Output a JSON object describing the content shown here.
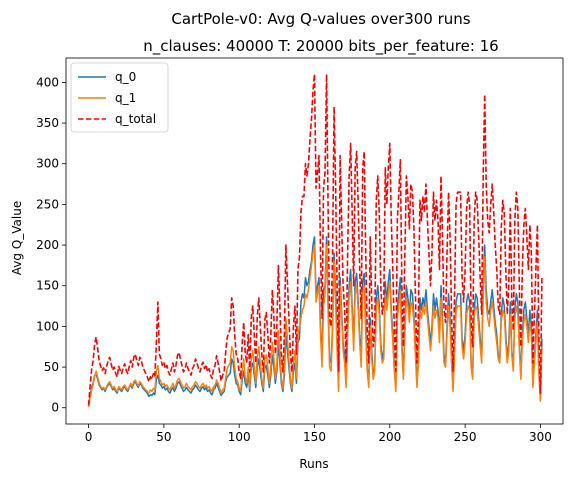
{
  "chart_data": {
    "type": "line",
    "title": "CartPole-v0: Avg Q-values over300 runs",
    "subtitle": "n_clauses: 40000 T: 20000 bits_per_feature: 16",
    "xlabel": "Runs",
    "ylabel": "Avg Q_Value",
    "xlim": [
      -15,
      315
    ],
    "ylim": [
      -20,
      430
    ],
    "xticks": [
      0,
      50,
      100,
      150,
      200,
      250,
      300
    ],
    "yticks": [
      0,
      50,
      100,
      150,
      200,
      250,
      300,
      350,
      400
    ],
    "grid": false,
    "legend_position": "top-left",
    "series": [
      {
        "name": "q_0",
        "color": "#1f77b4",
        "style": "solid",
        "values": [
          2,
          15,
          25,
          30,
          40,
          42,
          35,
          28,
          25,
          22,
          24,
          20,
          25,
          28,
          30,
          26,
          22,
          24,
          20,
          18,
          25,
          22,
          20,
          24,
          26,
          22,
          20,
          25,
          28,
          24,
          30,
          32,
          28,
          25,
          30,
          28,
          24,
          22,
          20,
          18,
          14,
          16,
          15,
          18,
          16,
          35,
          40,
          30,
          28,
          24,
          26,
          22,
          24,
          20,
          18,
          22,
          25,
          20,
          24,
          30,
          32,
          28,
          24,
          20,
          22,
          25,
          22,
          20,
          18,
          22,
          24,
          28,
          25,
          22,
          20,
          24,
          26,
          22,
          25,
          20,
          22,
          18,
          16,
          22,
          24,
          30,
          25,
          20,
          15,
          18,
          20,
          32,
          38,
          40,
          42,
          60,
          55,
          40,
          30,
          28,
          20,
          16,
          35,
          45,
          30,
          25,
          40,
          20,
          50,
          55,
          40,
          25,
          50,
          60,
          45,
          30,
          20,
          48,
          52,
          40,
          25,
          40,
          65,
          50,
          30,
          45,
          80,
          55,
          30,
          20,
          40,
          90,
          70,
          50,
          30,
          20,
          45,
          55,
          30,
          80,
          85,
          130,
          140,
          135,
          160,
          150,
          155,
          170,
          180,
          200,
          210,
          140,
          150,
          160,
          100,
          60,
          145,
          150,
          210,
          130,
          60,
          55,
          100,
          190,
          145,
          80,
          25,
          160,
          120,
          80,
          65,
          30,
          100,
          150,
          170,
          125,
          80,
          155,
          165,
          130,
          90,
          60,
          155,
          165,
          100,
          50,
          30,
          110,
          70,
          40,
          50,
          135,
          150,
          125,
          80,
          60,
          70,
          155,
          130,
          155,
          170,
          120,
          90,
          50,
          25,
          120,
          140,
          160,
          80,
          40,
          100,
          150,
          135,
          115,
          145,
          140,
          115,
          75,
          30,
          60,
          135,
          120,
          135,
          125,
          145,
          120,
          100,
          80,
          100,
          140,
          120,
          135,
          120,
          90,
          150,
          110,
          65,
          55,
          100,
          140,
          110,
          60,
          25,
          75,
          130,
          140,
          140,
          140,
          85,
          70,
          90,
          130,
          140,
          130,
          55,
          40,
          120,
          140,
          135,
          110,
          85,
          60,
          150,
          200,
          145,
          120,
          115,
          130,
          145,
          125,
          105,
          90,
          65,
          60,
          115,
          135,
          125,
          90,
          60,
          80,
          130,
          70,
          50,
          120,
          140,
          130,
          80,
          40,
          90,
          120,
          130,
          110,
          90,
          120,
          100,
          30,
          60,
          90,
          120,
          45,
          10,
          85
        ]
      },
      {
        "name": "q_1",
        "color": "#ff7f0e",
        "style": "solid",
        "values": [
          1,
          12,
          22,
          28,
          38,
          45,
          38,
          30,
          26,
          24,
          25,
          22,
          26,
          30,
          32,
          28,
          24,
          26,
          22,
          20,
          26,
          24,
          22,
          26,
          28,
          24,
          22,
          26,
          30,
          26,
          32,
          34,
          30,
          27,
          32,
          30,
          26,
          24,
          22,
          20,
          18,
          22,
          20,
          24,
          22,
          45,
          52,
          36,
          32,
          28,
          30,
          26,
          28,
          24,
          22,
          26,
          30,
          24,
          28,
          34,
          36,
          32,
          28,
          24,
          26,
          30,
          26,
          24,
          22,
          26,
          28,
          32,
          30,
          26,
          24,
          28,
          30,
          26,
          28,
          24,
          26,
          22,
          20,
          26,
          28,
          34,
          30,
          24,
          18,
          22,
          24,
          36,
          48,
          52,
          55,
          75,
          70,
          50,
          36,
          32,
          24,
          20,
          45,
          60,
          38,
          30,
          50,
          24,
          60,
          70,
          50,
          30,
          62,
          75,
          55,
          36,
          24,
          60,
          65,
          50,
          30,
          50,
          80,
          62,
          36,
          55,
          95,
          70,
          36,
          24,
          50,
          110,
          85,
          60,
          36,
          24,
          55,
          70,
          36,
          90,
          100,
          110,
          120,
          125,
          140,
          135,
          145,
          160,
          175,
          190,
          200,
          130,
          140,
          150,
          90,
          50,
          125,
          140,
          200,
          120,
          50,
          45,
          90,
          180,
          130,
          70,
          20,
          150,
          110,
          70,
          55,
          25,
          90,
          135,
          155,
          115,
          70,
          140,
          150,
          120,
          80,
          50,
          140,
          150,
          90,
          45,
          25,
          100,
          60,
          35,
          45,
          120,
          135,
          115,
          70,
          55,
          60,
          140,
          120,
          140,
          155,
          110,
          80,
          45,
          20,
          110,
          125,
          145,
          70,
          35,
          90,
          135,
          125,
          105,
          130,
          125,
          105,
          65,
          25,
          55,
          120,
          110,
          125,
          115,
          130,
          110,
          90,
          70,
          90,
          125,
          110,
          120,
          110,
          80,
          135,
          100,
          55,
          50,
          90,
          125,
          100,
          55,
          20,
          65,
          120,
          125,
          125,
          125,
          75,
          60,
          80,
          115,
          125,
          120,
          50,
          35,
          110,
          125,
          120,
          100,
          75,
          55,
          135,
          185,
          130,
          110,
          100,
          120,
          130,
          115,
          95,
          80,
          60,
          55,
          105,
          120,
          115,
          80,
          55,
          70,
          115,
          65,
          45,
          110,
          125,
          115,
          70,
          35,
          80,
          105,
          115,
          100,
          80,
          105,
          90,
          25,
          55,
          80,
          105,
          40,
          8,
          75
        ]
      },
      {
        "name": "q_total",
        "color": "#ff0000",
        "style": "dashed",
        "values": [
          3,
          27,
          47,
          58,
          78,
          87,
          73,
          58,
          51,
          46,
          49,
          42,
          51,
          58,
          62,
          54,
          46,
          50,
          42,
          38,
          51,
          46,
          42,
          50,
          54,
          46,
          42,
          51,
          58,
          50,
          62,
          66,
          58,
          52,
          62,
          58,
          50,
          46,
          42,
          38,
          32,
          38,
          35,
          42,
          38,
          80,
          130,
          66,
          60,
          52,
          56,
          48,
          52,
          44,
          40,
          48,
          55,
          44,
          52,
          64,
          68,
          60,
          52,
          44,
          48,
          55,
          48,
          44,
          40,
          48,
          52,
          60,
          55,
          48,
          44,
          52,
          56,
          48,
          53,
          44,
          48,
          40,
          36,
          48,
          52,
          64,
          55,
          44,
          33,
          40,
          44,
          68,
          86,
          92,
          97,
          135,
          125,
          90,
          66,
          60,
          44,
          36,
          80,
          105,
          68,
          55,
          90,
          44,
          110,
          125,
          90,
          55,
          112,
          135,
          100,
          66,
          44,
          108,
          117,
          90,
          55,
          90,
          145,
          112,
          66,
          100,
          175,
          125,
          66,
          44,
          90,
          200,
          155,
          110,
          66,
          44,
          100,
          125,
          66,
          170,
          185,
          240,
          260,
          260,
          300,
          285,
          300,
          330,
          355,
          390,
          410,
          270,
          290,
          310,
          190,
          110,
          270,
          290,
          410,
          250,
          110,
          100,
          190,
          370,
          275,
          150,
          45,
          310,
          230,
          150,
          120,
          55,
          190,
          285,
          325,
          240,
          150,
          295,
          315,
          250,
          170,
          110,
          295,
          315,
          190,
          95,
          55,
          210,
          130,
          75,
          95,
          255,
          285,
          240,
          150,
          115,
          130,
          295,
          250,
          295,
          325,
          230,
          170,
          95,
          45,
          230,
          265,
          305,
          150,
          75,
          190,
          285,
          260,
          220,
          275,
          265,
          220,
          140,
          55,
          115,
          255,
          230,
          260,
          240,
          275,
          230,
          190,
          150,
          190,
          265,
          230,
          255,
          230,
          170,
          285,
          210,
          120,
          105,
          190,
          265,
          210,
          115,
          45,
          140,
          250,
          265,
          265,
          265,
          160,
          130,
          170,
          245,
          265,
          250,
          105,
          75,
          230,
          265,
          255,
          210,
          160,
          115,
          285,
          385,
          275,
          230,
          215,
          250,
          275,
          240,
          200,
          170,
          125,
          115,
          220,
          255,
          240,
          170,
          115,
          150,
          245,
          135,
          95,
          230,
          265,
          245,
          150,
          75,
          170,
          225,
          245,
          210,
          170,
          225,
          190,
          55,
          115,
          170,
          225,
          85,
          18,
          160
        ]
      }
    ]
  }
}
